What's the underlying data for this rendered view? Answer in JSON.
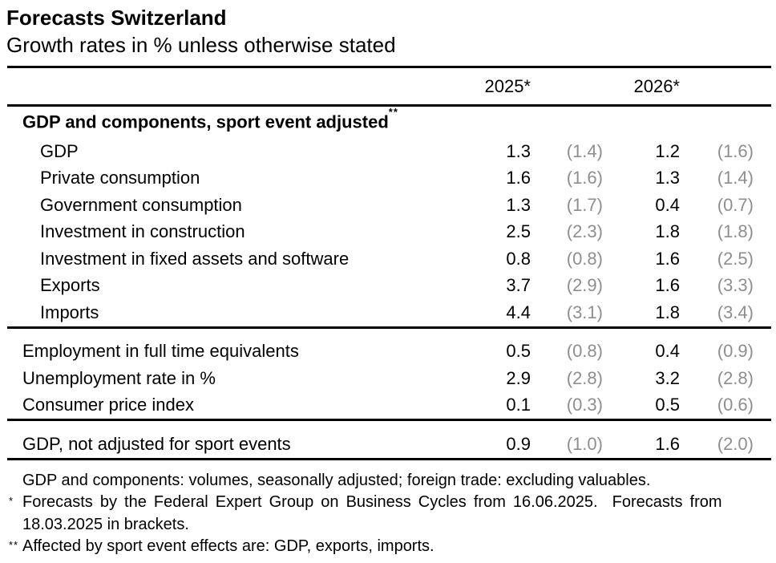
{
  "page": {
    "title": "Forecasts Switzerland",
    "subtitle": "Growth rates in % unless otherwise stated"
  },
  "table": {
    "col_headers": {
      "y2025": "2025*",
      "y2026": "2026*"
    },
    "section_header": {
      "label": "GDP and components, sport event adjusted",
      "marker": "**"
    },
    "rows": [
      {
        "label": "GDP",
        "v2025": "1.3",
        "b2025": "(1.4)",
        "v2026": "1.2",
        "b2026": "(1.6)"
      },
      {
        "label": "Private consumption",
        "v2025": "1.6",
        "b2025": "(1.6)",
        "v2026": "1.3",
        "b2026": "(1.4)"
      },
      {
        "label": "Government consumption",
        "v2025": "1.3",
        "b2025": "(1.7)",
        "v2026": "0.4",
        "b2026": "(0.7)"
      },
      {
        "label": "Investment in construction",
        "v2025": "2.5",
        "b2025": "(2.3)",
        "v2026": "1.8",
        "b2026": "(1.8)"
      },
      {
        "label": "Investment in fixed assets and software",
        "v2025": "0.8",
        "b2025": "(0.8)",
        "v2026": "1.6",
        "b2026": "(2.5)"
      },
      {
        "label": "Exports",
        "v2025": "3.7",
        "b2025": "(2.9)",
        "v2026": "1.6",
        "b2026": "(3.3)"
      },
      {
        "label": "Imports",
        "v2025": "4.4",
        "b2025": "(3.1)",
        "v2026": "1.8",
        "b2026": "(3.4)"
      },
      {
        "label": "Employment in full time equivalents",
        "v2025": "0.5",
        "b2025": "(0.8)",
        "v2026": "0.4",
        "b2026": "(0.9)"
      },
      {
        "label": "Unemployment rate in %",
        "v2025": "2.9",
        "b2025": "(2.8)",
        "v2026": "3.2",
        "b2026": "(2.8)"
      },
      {
        "label": "Consumer price index",
        "v2025": "0.1",
        "b2025": "(0.3)",
        "v2026": "0.5",
        "b2026": "(0.6)"
      },
      {
        "label": "GDP, not adjusted for sport events",
        "v2025": "0.9",
        "b2025": "(1.0)",
        "v2026": "1.6",
        "b2026": "(2.0)"
      }
    ]
  },
  "footnotes": {
    "general": "GDP and components: volumes, seasonally adjusted; foreign trade: excluding valuables.",
    "star": {
      "marker": "*",
      "line1": "Forecasts by the Federal Expert Group on Business Cycles from 16.06.2025.  Forecasts from",
      "line2": "18.03.2025 in brackets."
    },
    "doublestar": {
      "marker": "**",
      "text": "Affected by sport event effects are: GDP, exports, imports."
    }
  },
  "colors": {
    "text": "#000000",
    "bracket_gray": "#8e8e8e",
    "rule": "#000000"
  }
}
